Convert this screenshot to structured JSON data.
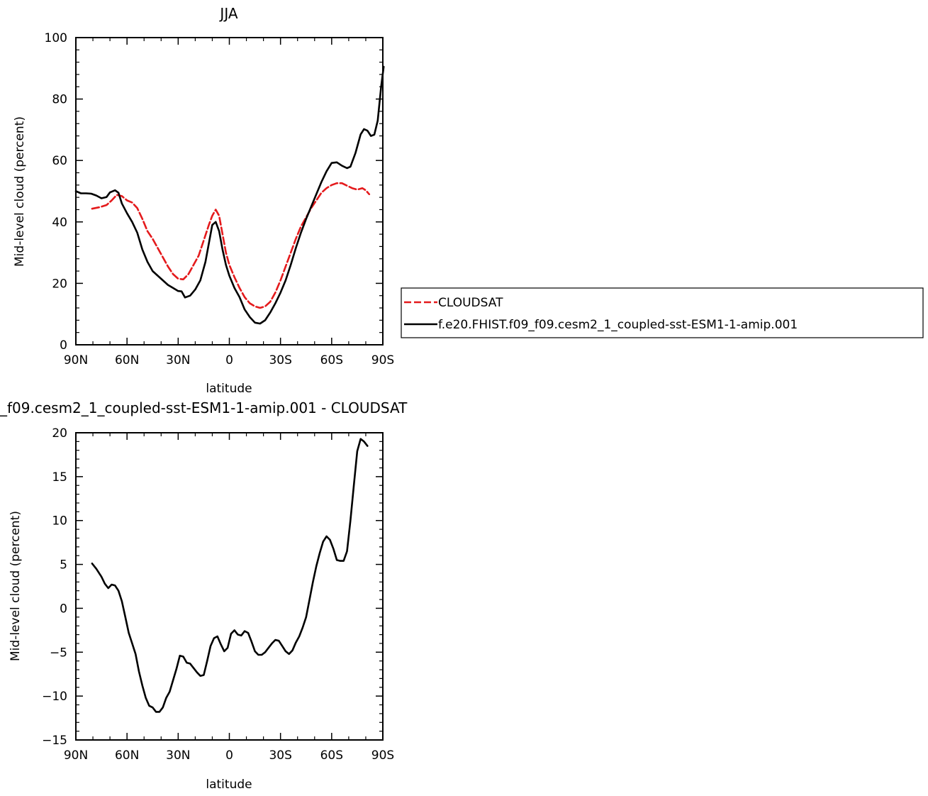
{
  "charts": [
    {
      "type": "line",
      "title": "JJA",
      "xlabel": "latitude",
      "ylabel": "Mid-level cloud (percent)",
      "xlim": [
        90,
        -90
      ],
      "ylim": [
        0,
        100
      ],
      "x_ticks": [
        {
          "v": 90,
          "label": "90N"
        },
        {
          "v": 60,
          "label": "60N"
        },
        {
          "v": 30,
          "label": "30N"
        },
        {
          "v": 0,
          "label": "0"
        },
        {
          "v": -30,
          "label": "30S"
        },
        {
          "v": -60,
          "label": "60S"
        },
        {
          "v": -90,
          "label": "90S"
        }
      ],
      "y_ticks": [
        {
          "v": 0,
          "label": "0"
        },
        {
          "v": 20,
          "label": "20"
        },
        {
          "v": 40,
          "label": "40"
        },
        {
          "v": 60,
          "label": "60"
        },
        {
          "v": 80,
          "label": "80"
        },
        {
          "v": 100,
          "label": "100"
        }
      ],
      "legend": {
        "position": "right",
        "entries": [
          {
            "label": "CLOUDSAT",
            "color": "#e41a1c",
            "dash": true
          },
          {
            "label": "f.e20.FHIST.f09_f09.cesm2_1_coupled-sst-ESM1-1-amip.001",
            "color": "#000000",
            "dash": false
          }
        ]
      },
      "series": [
        {
          "key": "cloudsat",
          "color": "#e41a1c",
          "dash": true,
          "points": [
            [
              80.5,
              44.3
            ],
            [
              76,
              44.8
            ],
            [
              72,
              45.5
            ],
            [
              69,
              47
            ],
            [
              66,
              48.8
            ],
            [
              63,
              48.4
            ],
            [
              60,
              47
            ],
            [
              57,
              46.3
            ],
            [
              54,
              44.5
            ],
            [
              51,
              41
            ],
            [
              48,
              37
            ],
            [
              45,
              34.5
            ],
            [
              42,
              31.5
            ],
            [
              39,
              28.5
            ],
            [
              36,
              25.5
            ],
            [
              33,
              23
            ],
            [
              30,
              21.5
            ],
            [
              27,
              21.3
            ],
            [
              24,
              23
            ],
            [
              21,
              26
            ],
            [
              18,
              29
            ],
            [
              15,
              34
            ],
            [
              12,
              39
            ],
            [
              10,
              42
            ],
            [
              8,
              44
            ],
            [
              6,
              42
            ],
            [
              4,
              36
            ],
            [
              2,
              30
            ],
            [
              0,
              26
            ],
            [
              -3,
              22
            ],
            [
              -6,
              18.5
            ],
            [
              -9,
              15.5
            ],
            [
              -12,
              13.5
            ],
            [
              -15,
              12.5
            ],
            [
              -18,
              12
            ],
            [
              -21,
              12.5
            ],
            [
              -24,
              14
            ],
            [
              -27,
              17
            ],
            [
              -30,
              21
            ],
            [
              -33,
              25.5
            ],
            [
              -36,
              30
            ],
            [
              -39,
              34.5
            ],
            [
              -42,
              38.5
            ],
            [
              -45,
              41.5
            ],
            [
              -48,
              44.5
            ],
            [
              -51,
              47
            ],
            [
              -54,
              49.5
            ],
            [
              -57,
              51
            ],
            [
              -60,
              52
            ],
            [
              -63,
              52.6
            ],
            [
              -66,
              52.6
            ],
            [
              -69,
              51.8
            ],
            [
              -72,
              51
            ],
            [
              -75,
              50.5
            ],
            [
              -78,
              51
            ],
            [
              -80,
              50.3
            ],
            [
              -82,
              49
            ]
          ]
        },
        {
          "key": "model",
          "color": "#000000",
          "dash": false,
          "points": [
            [
              90,
              50
            ],
            [
              87,
              49.3
            ],
            [
              84,
              49.3
            ],
            [
              81,
              49.2
            ],
            [
              78,
              48.6
            ],
            [
              75,
              47.7
            ],
            [
              72,
              48.1
            ],
            [
              70,
              49.6
            ],
            [
              67,
              50.3
            ],
            [
              65,
              49.5
            ],
            [
              63,
              46
            ],
            [
              60,
              42.8
            ],
            [
              57,
              40
            ],
            [
              54,
              36.5
            ],
            [
              51,
              31
            ],
            [
              48,
              27
            ],
            [
              45,
              24
            ],
            [
              42,
              22.5
            ],
            [
              39,
              21
            ],
            [
              36,
              19.5
            ],
            [
              33,
              18.5
            ],
            [
              30,
              17.5
            ],
            [
              28,
              17.4
            ],
            [
              26,
              15.4
            ],
            [
              23,
              16
            ],
            [
              20,
              18
            ],
            [
              17,
              21
            ],
            [
              14,
              27
            ],
            [
              12,
              33
            ],
            [
              10,
              39
            ],
            [
              8,
              40
            ],
            [
              6,
              37
            ],
            [
              4,
              31
            ],
            [
              2,
              26
            ],
            [
              0,
              22.5
            ],
            [
              -3,
              18.5
            ],
            [
              -6,
              15.5
            ],
            [
              -9,
              11.5
            ],
            [
              -12,
              9
            ],
            [
              -15,
              7.2
            ],
            [
              -18,
              6.9
            ],
            [
              -21,
              8
            ],
            [
              -24,
              10.5
            ],
            [
              -27,
              13.5
            ],
            [
              -30,
              17
            ],
            [
              -33,
              21
            ],
            [
              -36,
              26
            ],
            [
              -39,
              31.5
            ],
            [
              -42,
              36.5
            ],
            [
              -45,
              41
            ],
            [
              -48,
              45
            ],
            [
              -51,
              49
            ],
            [
              -54,
              53
            ],
            [
              -57,
              56.5
            ],
            [
              -60,
              59.2
            ],
            [
              -63,
              59.4
            ],
            [
              -66,
              58.3
            ],
            [
              -69,
              57.5
            ],
            [
              -71,
              58
            ],
            [
              -74,
              62.5
            ],
            [
              -77,
              68.5
            ],
            [
              -79,
              70.2
            ],
            [
              -81,
              69.7
            ],
            [
              -83,
              68
            ],
            [
              -85,
              68.4
            ],
            [
              -87,
              73
            ],
            [
              -89,
              84
            ],
            [
              -90.5,
              90.5
            ]
          ]
        }
      ]
    },
    {
      "type": "line",
      "title": "_f09.cesm2_1_coupled-sst-ESM1-1-amip.001 - CLOUDSAT",
      "xlabel": "latitude",
      "ylabel": "Mid-level cloud (percent)",
      "xlim": [
        90,
        -90
      ],
      "ylim": [
        -15,
        20
      ],
      "x_ticks": [
        {
          "v": 90,
          "label": "90N"
        },
        {
          "v": 60,
          "label": "60N"
        },
        {
          "v": 30,
          "label": "30N"
        },
        {
          "v": 0,
          "label": "0"
        },
        {
          "v": -30,
          "label": "30S"
        },
        {
          "v": -60,
          "label": "60S"
        },
        {
          "v": -90,
          "label": "90S"
        }
      ],
      "y_ticks": [
        {
          "v": -15,
          "label": "−15"
        },
        {
          "v": -10,
          "label": "−10"
        },
        {
          "v": -5,
          "label": "−5"
        },
        {
          "v": 0,
          "label": "0"
        },
        {
          "v": 5,
          "label": "5"
        },
        {
          "v": 10,
          "label": "10"
        },
        {
          "v": 15,
          "label": "15"
        },
        {
          "v": 20,
          "label": "20"
        }
      ],
      "series": [
        {
          "key": "difference",
          "color": "#000000",
          "dash": false,
          "points": [
            [
              80.5,
              5.1
            ],
            [
              78,
              4.5
            ],
            [
              75,
              3.6
            ],
            [
              73,
              2.8
            ],
            [
              71,
              2.3
            ],
            [
              69,
              2.7
            ],
            [
              67,
              2.6
            ],
            [
              65,
              2
            ],
            [
              63,
              0.8
            ],
            [
              61,
              -1
            ],
            [
              59,
              -2.8
            ],
            [
              57,
              -4
            ],
            [
              55,
              -5.2
            ],
            [
              53,
              -7.2
            ],
            [
              51,
              -8.8
            ],
            [
              49,
              -10.2
            ],
            [
              47,
              -11.1
            ],
            [
              45,
              -11.3
            ],
            [
              43,
              -11.8
            ],
            [
              41,
              -11.8
            ],
            [
              39,
              -11.3
            ],
            [
              37,
              -10.2
            ],
            [
              35,
              -9.5
            ],
            [
              33,
              -8.2
            ],
            [
              31,
              -6.9
            ],
            [
              29,
              -5.4
            ],
            [
              27,
              -5.5
            ],
            [
              25,
              -6.2
            ],
            [
              23,
              -6.3
            ],
            [
              21,
              -6.8
            ],
            [
              19,
              -7.3
            ],
            [
              17,
              -7.7
            ],
            [
              15,
              -7.6
            ],
            [
              13,
              -6
            ],
            [
              11,
              -4.3
            ],
            [
              9,
              -3.4
            ],
            [
              7,
              -3.2
            ],
            [
              5,
              -4.1
            ],
            [
              3,
              -4.9
            ],
            [
              1,
              -4.5
            ],
            [
              -1,
              -2.9
            ],
            [
              -3,
              -2.5
            ],
            [
              -5,
              -3
            ],
            [
              -7,
              -3.1
            ],
            [
              -9,
              -2.6
            ],
            [
              -11,
              -2.8
            ],
            [
              -13,
              -3.8
            ],
            [
              -15,
              -4.9
            ],
            [
              -17,
              -5.3
            ],
            [
              -19,
              -5.3
            ],
            [
              -21,
              -5.0
            ],
            [
              -23,
              -4.5
            ],
            [
              -25,
              -4.0
            ],
            [
              -27,
              -3.6
            ],
            [
              -29,
              -3.7
            ],
            [
              -31,
              -4.3
            ],
            [
              -33,
              -4.9
            ],
            [
              -35,
              -5.2
            ],
            [
              -37,
              -4.8
            ],
            [
              -39,
              -3.9
            ],
            [
              -41,
              -3.2
            ],
            [
              -43,
              -2.2
            ],
            [
              -45,
              -1
            ],
            [
              -47,
              1
            ],
            [
              -49,
              3
            ],
            [
              -51,
              4.8
            ],
            [
              -53,
              6.3
            ],
            [
              -55,
              7.6
            ],
            [
              -57,
              8.2
            ],
            [
              -59,
              7.8
            ],
            [
              -61,
              6.8
            ],
            [
              -63,
              5.5
            ],
            [
              -65,
              5.4
            ],
            [
              -67,
              5.4
            ],
            [
              -69,
              6.5
            ],
            [
              -71,
              10
            ],
            [
              -73,
              14
            ],
            [
              -75,
              17.9
            ],
            [
              -77,
              19.3
            ],
            [
              -79,
              19
            ],
            [
              -81,
              18.5
            ]
          ]
        }
      ]
    }
  ]
}
